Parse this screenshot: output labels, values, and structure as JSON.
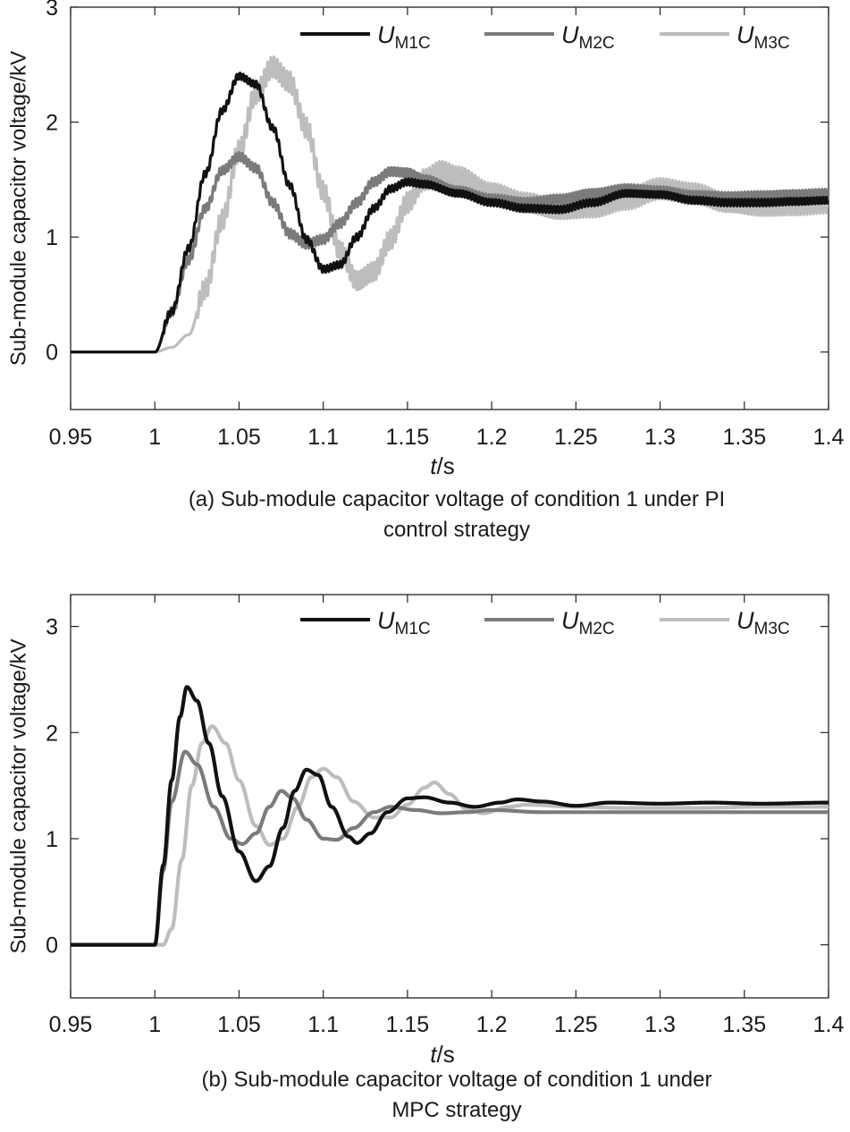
{
  "figure": {
    "x_label_italic": "t",
    "x_label_unit": "/s"
  },
  "chart_data": [
    {
      "type": "line",
      "title": "",
      "caption_line1": "(a) Sub-module capacitor voltage of condition 1 under PI",
      "caption_line2": "control strategy",
      "ylabel": "Sub-module capacitor voltage/kV",
      "xlim": [
        0.95,
        1.4
      ],
      "ylim": [
        -0.5,
        3
      ],
      "xticks": [
        0.95,
        1,
        1.05,
        1.1,
        1.15,
        1.2,
        1.25,
        1.3,
        1.35,
        1.4
      ],
      "xtick_labels": [
        "0.95",
        "1",
        "1.05",
        "1.1",
        "1.15",
        "1.2",
        "1.25",
        "1.3",
        "1.35",
        "1.4"
      ],
      "yticks": [
        0,
        1,
        2,
        3
      ],
      "ytick_labels": [
        "0",
        "1",
        "2",
        "3"
      ],
      "legend": [
        {
          "name": "U",
          "sub": "M1C",
          "color": "#111111"
        },
        {
          "name": "U",
          "sub": "M2C",
          "color": "#7b7b7b"
        },
        {
          "name": "U",
          "sub": "M3C",
          "color": "#bdbdbd"
        }
      ],
      "series": [
        {
          "name": "UM1C",
          "color": "#111111",
          "ripple": 0.03,
          "ripple_start": 1.0,
          "points": [
            [
              0.95,
              0
            ],
            [
              1.0,
              0
            ],
            [
              1.01,
              0.35
            ],
            [
              1.02,
              0.9
            ],
            [
              1.03,
              1.55
            ],
            [
              1.04,
              2.1
            ],
            [
              1.05,
              2.4
            ],
            [
              1.06,
              2.33
            ],
            [
              1.07,
              1.95
            ],
            [
              1.08,
              1.45
            ],
            [
              1.09,
              0.98
            ],
            [
              1.1,
              0.72
            ],
            [
              1.11,
              0.76
            ],
            [
              1.12,
              1.0
            ],
            [
              1.13,
              1.25
            ],
            [
              1.14,
              1.42
            ],
            [
              1.15,
              1.48
            ],
            [
              1.16,
              1.46
            ],
            [
              1.18,
              1.38
            ],
            [
              1.2,
              1.3
            ],
            [
              1.22,
              1.25
            ],
            [
              1.24,
              1.24
            ],
            [
              1.26,
              1.3
            ],
            [
              1.28,
              1.38
            ],
            [
              1.3,
              1.37
            ],
            [
              1.32,
              1.32
            ],
            [
              1.34,
              1.3
            ],
            [
              1.36,
              1.3
            ],
            [
              1.38,
              1.31
            ],
            [
              1.4,
              1.32
            ]
          ]
        },
        {
          "name": "UM2C",
          "color": "#7b7b7b",
          "ripple": 0.04,
          "ripple_start": 1.0,
          "points": [
            [
              0.95,
              0
            ],
            [
              1.0,
              0
            ],
            [
              1.01,
              0.35
            ],
            [
              1.02,
              0.8
            ],
            [
              1.03,
              1.25
            ],
            [
              1.04,
              1.58
            ],
            [
              1.05,
              1.7
            ],
            [
              1.06,
              1.6
            ],
            [
              1.07,
              1.3
            ],
            [
              1.08,
              1.03
            ],
            [
              1.09,
              0.94
            ],
            [
              1.1,
              0.98
            ],
            [
              1.11,
              1.12
            ],
            [
              1.12,
              1.3
            ],
            [
              1.13,
              1.48
            ],
            [
              1.14,
              1.57
            ],
            [
              1.15,
              1.56
            ],
            [
              1.16,
              1.5
            ],
            [
              1.18,
              1.4
            ],
            [
              1.2,
              1.33
            ],
            [
              1.22,
              1.3
            ],
            [
              1.24,
              1.33
            ],
            [
              1.26,
              1.38
            ],
            [
              1.28,
              1.42
            ],
            [
              1.3,
              1.4
            ],
            [
              1.32,
              1.36
            ],
            [
              1.34,
              1.35
            ],
            [
              1.36,
              1.36
            ],
            [
              1.38,
              1.37
            ],
            [
              1.4,
              1.38
            ]
          ]
        },
        {
          "name": "UM3C",
          "color": "#bdbdbd",
          "ripple": 0.09,
          "ripple_start": 1.02,
          "points": [
            [
              0.95,
              0
            ],
            [
              1.0,
              0
            ],
            [
              1.01,
              0.04
            ],
            [
              1.02,
              0.15
            ],
            [
              1.03,
              0.55
            ],
            [
              1.04,
              1.15
            ],
            [
              1.05,
              1.75
            ],
            [
              1.06,
              2.25
            ],
            [
              1.07,
              2.48
            ],
            [
              1.08,
              2.35
            ],
            [
              1.09,
              1.95
            ],
            [
              1.1,
              1.4
            ],
            [
              1.11,
              0.88
            ],
            [
              1.12,
              0.62
            ],
            [
              1.13,
              0.7
            ],
            [
              1.14,
              0.98
            ],
            [
              1.15,
              1.3
            ],
            [
              1.16,
              1.5
            ],
            [
              1.17,
              1.57
            ],
            [
              1.18,
              1.52
            ],
            [
              1.2,
              1.38
            ],
            [
              1.22,
              1.3
            ],
            [
              1.24,
              1.24
            ],
            [
              1.26,
              1.26
            ],
            [
              1.28,
              1.33
            ],
            [
              1.3,
              1.42
            ],
            [
              1.32,
              1.38
            ],
            [
              1.34,
              1.3
            ],
            [
              1.36,
              1.27
            ],
            [
              1.38,
              1.28
            ],
            [
              1.4,
              1.3
            ]
          ]
        }
      ]
    },
    {
      "type": "line",
      "title": "",
      "caption_line1": "(b) Sub-module capacitor voltage of condition 1 under",
      "caption_line2": "MPC strategy",
      "ylabel": "Sub-module capacitor voltage/kV",
      "xlim": [
        0.95,
        1.4
      ],
      "ylim": [
        -0.5,
        3.3
      ],
      "xticks": [
        0.95,
        1,
        1.05,
        1.1,
        1.15,
        1.2,
        1.25,
        1.3,
        1.35,
        1.4
      ],
      "xtick_labels": [
        "0.95",
        "1",
        "1.05",
        "1.1",
        "1.15",
        "1.2",
        "1.25",
        "1.3",
        "1.35",
        "1.4"
      ],
      "yticks": [
        0,
        1,
        2,
        3
      ],
      "ytick_labels": [
        "0",
        "1",
        "2",
        "3"
      ],
      "legend": [
        {
          "name": "U",
          "sub": "M1C",
          "color": "#111111"
        },
        {
          "name": "U",
          "sub": "M2C",
          "color": "#7b7b7b"
        },
        {
          "name": "U",
          "sub": "M3C",
          "color": "#bdbdbd"
        }
      ],
      "series": [
        {
          "name": "UM1C",
          "color": "#111111",
          "ripple": 0,
          "ripple_start": 1.0,
          "points": [
            [
              0.95,
              0
            ],
            [
              1.0,
              0
            ],
            [
              1.005,
              0.75
            ],
            [
              1.01,
              1.55
            ],
            [
              1.015,
              2.15
            ],
            [
              1.019,
              2.43
            ],
            [
              1.025,
              2.3
            ],
            [
              1.032,
              1.9
            ],
            [
              1.04,
              1.4
            ],
            [
              1.05,
              0.88
            ],
            [
              1.06,
              0.6
            ],
            [
              1.068,
              0.74
            ],
            [
              1.076,
              1.1
            ],
            [
              1.083,
              1.45
            ],
            [
              1.09,
              1.65
            ],
            [
              1.097,
              1.6
            ],
            [
              1.105,
              1.3
            ],
            [
              1.115,
              1.02
            ],
            [
              1.12,
              0.96
            ],
            [
              1.128,
              1.05
            ],
            [
              1.138,
              1.25
            ],
            [
              1.15,
              1.38
            ],
            [
              1.16,
              1.39
            ],
            [
              1.175,
              1.34
            ],
            [
              1.19,
              1.3
            ],
            [
              1.205,
              1.34
            ],
            [
              1.215,
              1.37
            ],
            [
              1.23,
              1.35
            ],
            [
              1.25,
              1.31
            ],
            [
              1.27,
              1.34
            ],
            [
              1.3,
              1.33
            ],
            [
              1.33,
              1.34
            ],
            [
              1.36,
              1.33
            ],
            [
              1.4,
              1.34
            ]
          ]
        },
        {
          "name": "UM2C",
          "color": "#7b7b7b",
          "ripple": 0,
          "ripple_start": 1.0,
          "points": [
            [
              0.95,
              0
            ],
            [
              1.0,
              0
            ],
            [
              1.005,
              0.7
            ],
            [
              1.01,
              1.35
            ],
            [
              1.018,
              1.82
            ],
            [
              1.025,
              1.7
            ],
            [
              1.035,
              1.3
            ],
            [
              1.045,
              1.0
            ],
            [
              1.052,
              0.95
            ],
            [
              1.06,
              1.05
            ],
            [
              1.068,
              1.3
            ],
            [
              1.075,
              1.45
            ],
            [
              1.082,
              1.38
            ],
            [
              1.09,
              1.18
            ],
            [
              1.1,
              1.0
            ],
            [
              1.108,
              0.99
            ],
            [
              1.118,
              1.1
            ],
            [
              1.13,
              1.25
            ],
            [
              1.14,
              1.3
            ],
            [
              1.155,
              1.27
            ],
            [
              1.17,
              1.24
            ],
            [
              1.185,
              1.25
            ],
            [
              1.2,
              1.27
            ],
            [
              1.23,
              1.25
            ],
            [
              1.26,
              1.25
            ],
            [
              1.3,
              1.25
            ],
            [
              1.35,
              1.25
            ],
            [
              1.4,
              1.25
            ]
          ]
        },
        {
          "name": "UM3C",
          "color": "#bdbdbd",
          "ripple": 0,
          "ripple_start": 1.0,
          "points": [
            [
              0.95,
              0
            ],
            [
              1.0,
              0
            ],
            [
              1.005,
              0.0
            ],
            [
              1.01,
              0.15
            ],
            [
              1.016,
              0.8
            ],
            [
              1.022,
              1.5
            ],
            [
              1.028,
              1.9
            ],
            [
              1.034,
              2.06
            ],
            [
              1.042,
              1.9
            ],
            [
              1.05,
              1.55
            ],
            [
              1.06,
              1.12
            ],
            [
              1.068,
              0.94
            ],
            [
              1.076,
              1.0
            ],
            [
              1.085,
              1.3
            ],
            [
              1.093,
              1.58
            ],
            [
              1.1,
              1.66
            ],
            [
              1.108,
              1.58
            ],
            [
              1.118,
              1.35
            ],
            [
              1.13,
              1.2
            ],
            [
              1.14,
              1.2
            ],
            [
              1.15,
              1.32
            ],
            [
              1.16,
              1.48
            ],
            [
              1.166,
              1.53
            ],
            [
              1.175,
              1.42
            ],
            [
              1.185,
              1.28
            ],
            [
              1.195,
              1.24
            ],
            [
              1.21,
              1.3
            ],
            [
              1.22,
              1.32
            ],
            [
              1.25,
              1.3
            ],
            [
              1.28,
              1.29
            ],
            [
              1.32,
              1.29
            ],
            [
              1.36,
              1.3
            ],
            [
              1.4,
              1.3
            ]
          ]
        }
      ]
    }
  ]
}
